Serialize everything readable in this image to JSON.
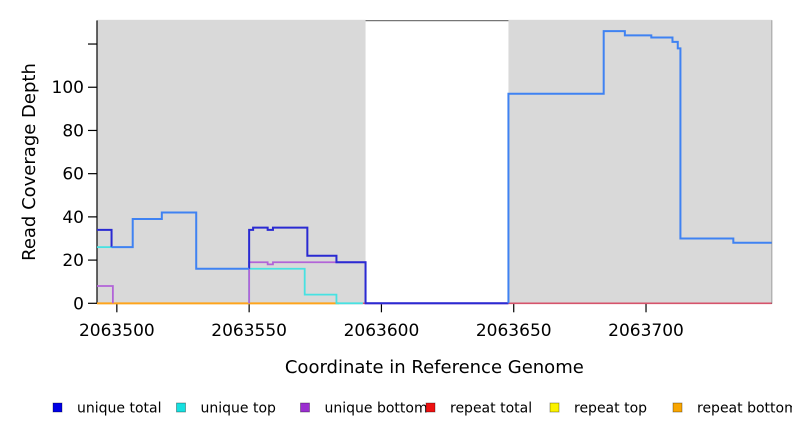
{
  "chart_data": {
    "type": "line",
    "title": "",
    "xlabel": "Coordinate in Reference Genome",
    "ylabel": "Read Coverage Depth",
    "xlim": [
      2063492.5,
      2063747.5
    ],
    "ylim": [
      0,
      130.8
    ],
    "x_ticks": [
      2063500,
      2063550,
      2063600,
      2063650,
      2063700
    ],
    "y_ticks": [
      0,
      20,
      40,
      60,
      80,
      100,
      120
    ],
    "y_tick_labels": [
      "0",
      "20",
      "40",
      "60",
      "80",
      "100",
      ""
    ],
    "grid": false,
    "legend_position": "bottom",
    "plot_bg": "#ffffff",
    "shaded_regions": [
      {
        "x0": 2063492.5,
        "x1": 2063594,
        "color": "#d9d9d9"
      },
      {
        "x0": 2063648,
        "x1": 2063747.5,
        "color": "#d9d9d9"
      }
    ],
    "series": [
      {
        "name": "repeat total",
        "color": "#d6536b",
        "width": 1.6,
        "paths": [
          [
            [
              2063492.5,
              0
            ],
            [
              2063747.5,
              0
            ]
          ]
        ]
      },
      {
        "name": "repeat top",
        "color": "#f0e400",
        "width": 1.6,
        "paths": [
          [
            [
              2063492.5,
              0
            ],
            [
              2063584,
              0
            ]
          ]
        ]
      },
      {
        "name": "repeat bottom",
        "color": "#ffa41b",
        "width": 1.8,
        "paths": [
          [
            [
              2063492.5,
              0
            ],
            [
              2063584,
              0
            ]
          ]
        ]
      },
      {
        "name": "unique top",
        "color": "#47e2e2",
        "width": 1.8,
        "paths": [
          [
            [
              2063492.5,
              26
            ],
            [
              2063498,
              26
            ]
          ],
          [
            [
              2063550,
              0
            ],
            [
              2063550,
              16
            ],
            [
              2063571,
              16
            ],
            [
              2063571,
              4
            ],
            [
              2063583,
              4
            ],
            [
              2063583,
              0
            ],
            [
              2063593,
              0
            ]
          ]
        ]
      },
      {
        "name": "unique bottom",
        "color": "#b264d8",
        "width": 1.8,
        "paths": [
          [
            [
              2063492.5,
              8
            ],
            [
              2063498.5,
              8
            ],
            [
              2063498.5,
              0
            ]
          ],
          [
            [
              2063550,
              0
            ],
            [
              2063550,
              19
            ],
            [
              2063557,
              19
            ],
            [
              2063557,
              18
            ],
            [
              2063559,
              18
            ],
            [
              2063559,
              19
            ],
            [
              2063594,
              19
            ],
            [
              2063594,
              0
            ],
            [
              2063648,
              0
            ]
          ]
        ]
      },
      {
        "name": "unique total",
        "color": "#2a2ad2",
        "width": 2,
        "paths": [
          [
            [
              2063492.5,
              34
            ],
            [
              2063498,
              34
            ],
            [
              2063498,
              26
            ]
          ],
          [
            [
              2063550,
              16
            ],
            [
              2063550,
              34
            ],
            [
              2063551.5,
              34
            ],
            [
              2063551.5,
              35
            ],
            [
              2063557,
              35
            ],
            [
              2063557,
              34
            ],
            [
              2063559,
              34
            ],
            [
              2063559,
              35
            ],
            [
              2063572,
              35
            ],
            [
              2063572,
              22
            ],
            [
              2063583,
              22
            ],
            [
              2063583,
              19
            ],
            [
              2063594,
              19
            ],
            [
              2063594,
              0
            ],
            [
              2063648,
              0
            ]
          ]
        ]
      },
      {
        "name": "total coverage (light blue, not in legend)",
        "color": "#3f82f2",
        "width": 2,
        "paths": [
          [
            [
              2063498,
              26
            ],
            [
              2063506,
              26
            ],
            [
              2063506,
              39
            ],
            [
              2063517,
              39
            ],
            [
              2063517,
              42
            ],
            [
              2063530,
              42
            ],
            [
              2063530,
              16
            ],
            [
              2063550,
              16
            ]
          ],
          [
            [
              2063648,
              0
            ],
            [
              2063648,
              97
            ],
            [
              2063684,
              97
            ],
            [
              2063684,
              126
            ],
            [
              2063692,
              126
            ],
            [
              2063692,
              124
            ],
            [
              2063702,
              124
            ],
            [
              2063702,
              123
            ],
            [
              2063710,
              123
            ],
            [
              2063710,
              121
            ],
            [
              2063712,
              121
            ],
            [
              2063712,
              118
            ],
            [
              2063713,
              118
            ],
            [
              2063713,
              30
            ],
            [
              2063733,
              30
            ],
            [
              2063733,
              28
            ],
            [
              2063747.5,
              28
            ]
          ]
        ]
      }
    ],
    "legend": [
      {
        "label": "unique total",
        "color": "#0000e6"
      },
      {
        "label": "unique top",
        "color": "#16e0e0"
      },
      {
        "label": "unique bottom",
        "color": "#9b2fd0"
      },
      {
        "label": "repeat total",
        "color": "#ee1111"
      },
      {
        "label": "repeat top",
        "color": "#fbf200"
      },
      {
        "label": "repeat bottom",
        "color": "#f9a602"
      }
    ]
  }
}
